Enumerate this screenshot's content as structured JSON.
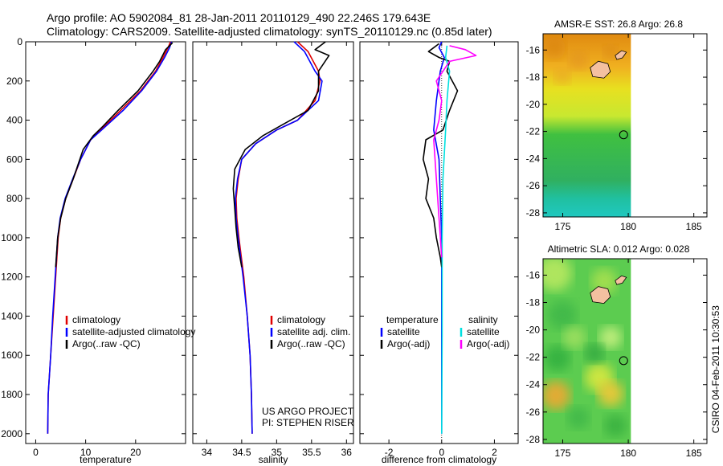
{
  "header": {
    "line1": "Argo profile: AO 5902084_81 28-Jan-2011 20110129_490 22.246S 179.643E",
    "line2": "Climatology: CARS2009. Satellite-adjusted climatology: synTS_20110129.nc (0.85d later)"
  },
  "credit": "CSIRO 04-Feb-2011 10:30:53",
  "colors": {
    "clim": "#e00000",
    "sat": "#0000ff",
    "argo": "#000000",
    "sat2": "#00e0e0",
    "argo2": "#ff00ff"
  },
  "chart_data": [
    {
      "type": "line",
      "xlabel": "temperature",
      "ylabel": "",
      "xlim": [
        -2,
        30
      ],
      "ylim": [
        2050,
        0
      ],
      "xticks": [
        "0",
        "10",
        "20"
      ],
      "xtick_values": [
        0,
        10,
        20
      ],
      "yticks": [
        "0",
        "200",
        "400",
        "600",
        "800",
        "1000",
        "1200",
        "1400",
        "1600",
        "1800",
        "2000"
      ],
      "ytick_values": [
        0,
        200,
        400,
        600,
        800,
        1000,
        1200,
        1400,
        1600,
        1800,
        2000
      ],
      "legend": [
        "climatology",
        "satellite-adjusted climatology",
        "Argo(..raw -QC)"
      ],
      "series": [
        {
          "name": "climatology",
          "color": "clim",
          "points": [
            [
              27,
              0
            ],
            [
              26.5,
              30
            ],
            [
              25.5,
              80
            ],
            [
              24,
              150
            ],
            [
              21,
              250
            ],
            [
              17,
              350
            ],
            [
              13,
              450
            ],
            [
              11,
              500
            ],
            [
              9,
              600
            ],
            [
              7.5,
              700
            ],
            [
              6,
              800
            ],
            [
              5,
              900
            ],
            [
              4.5,
              1000
            ],
            [
              4,
              1200
            ],
            [
              3.5,
              1400
            ],
            [
              3,
              1600
            ],
            [
              2.5,
              1800
            ],
            [
              2.4,
              2000
            ]
          ]
        },
        {
          "name": "satellite",
          "color": "sat",
          "points": [
            [
              27.2,
              0
            ],
            [
              26.8,
              30
            ],
            [
              25.8,
              80
            ],
            [
              24.2,
              150
            ],
            [
              21.2,
              250
            ],
            [
              17.5,
              350
            ],
            [
              13.2,
              450
            ],
            [
              11,
              500
            ],
            [
              9,
              600
            ],
            [
              7.4,
              700
            ],
            [
              5.9,
              800
            ],
            [
              4.9,
              900
            ],
            [
              4.4,
              1000
            ],
            [
              3.9,
              1200
            ],
            [
              3.4,
              1400
            ],
            [
              3,
              1600
            ],
            [
              2.5,
              1800
            ],
            [
              2.4,
              2000
            ]
          ]
        },
        {
          "name": "argo",
          "color": "argo",
          "points": [
            [
              27.4,
              5
            ],
            [
              26,
              40
            ],
            [
              24.8,
              100
            ],
            [
              23.5,
              150
            ],
            [
              20.5,
              250
            ],
            [
              16.5,
              350
            ],
            [
              13.5,
              430
            ],
            [
              11.5,
              480
            ],
            [
              9.5,
              550
            ],
            [
              7.5,
              700
            ],
            [
              6,
              800
            ],
            [
              5,
              900
            ],
            [
              4.4,
              1000
            ],
            [
              4,
              1150
            ]
          ]
        }
      ]
    },
    {
      "type": "line",
      "xlabel": "salinity",
      "ylabel": "",
      "xlim": [
        33.8,
        36.1
      ],
      "ylim": [
        2050,
        0
      ],
      "xticks": [
        "34",
        "34.5",
        "35",
        "35.5",
        "36"
      ],
      "xtick_values": [
        34,
        34.5,
        35,
        35.5,
        36
      ],
      "legend": [
        "climatology",
        "satellite adj. clim.",
        "Argo(..raw -QC)"
      ],
      "annotations": [
        "US ARGO PROJECT",
        "PI: STEPHEN RISER"
      ],
      "series": [
        {
          "name": "climatology",
          "color": "clim",
          "points": [
            [
              35.3,
              0
            ],
            [
              35.45,
              50
            ],
            [
              35.6,
              150
            ],
            [
              35.62,
              200
            ],
            [
              35.55,
              300
            ],
            [
              35.3,
              400
            ],
            [
              35,
              450
            ],
            [
              34.7,
              520
            ],
            [
              34.5,
              600
            ],
            [
              34.45,
              700
            ],
            [
              34.42,
              800
            ],
            [
              34.43,
              900
            ],
            [
              34.46,
              1000
            ],
            [
              34.53,
              1200
            ],
            [
              34.58,
              1400
            ],
            [
              34.62,
              1600
            ],
            [
              34.64,
              1800
            ],
            [
              34.65,
              2000
            ]
          ]
        },
        {
          "name": "satellite",
          "color": "sat",
          "points": [
            [
              35.25,
              0
            ],
            [
              35.4,
              50
            ],
            [
              35.55,
              150
            ],
            [
              35.65,
              200
            ],
            [
              35.6,
              300
            ],
            [
              35.3,
              400
            ],
            [
              35,
              450
            ],
            [
              34.7,
              520
            ],
            [
              34.5,
              600
            ],
            [
              34.44,
              700
            ],
            [
              34.41,
              800
            ],
            [
              34.42,
              900
            ],
            [
              34.45,
              1000
            ],
            [
              34.52,
              1200
            ],
            [
              34.58,
              1400
            ],
            [
              34.62,
              1600
            ],
            [
              34.64,
              1800
            ],
            [
              34.65,
              2000
            ]
          ]
        },
        {
          "name": "argo",
          "color": "argo",
          "points": [
            [
              35.7,
              0
            ],
            [
              35.55,
              40
            ],
            [
              35.75,
              70
            ],
            [
              35.6,
              150
            ],
            [
              35.6,
              250
            ],
            [
              35.45,
              350
            ],
            [
              35.1,
              420
            ],
            [
              34.8,
              480
            ],
            [
              34.55,
              550
            ],
            [
              34.4,
              650
            ],
            [
              34.38,
              750
            ],
            [
              34.4,
              850
            ],
            [
              34.42,
              950
            ],
            [
              34.45,
              1050
            ],
            [
              34.5,
              1150
            ]
          ]
        }
      ]
    },
    {
      "type": "line",
      "xlabel": "difference from climatology",
      "ylabel": "",
      "xlim": [
        -3.1,
        2.9
      ],
      "ylim": [
        2050,
        0
      ],
      "xticks": [
        "-2",
        "0",
        "2"
      ],
      "xtick_values": [
        -2,
        0,
        2
      ],
      "legend_left_title": "temperature",
      "legend_right_title": "salinity",
      "legend_left": [
        "satellite",
        "Argo(-adj)"
      ],
      "legend_right": [
        "satellite",
        "Argo(-adj)"
      ],
      "series": [
        {
          "name": "temperature satellite",
          "color": "sat",
          "points": [
            [
              0,
              0
            ],
            [
              -0.1,
              30
            ],
            [
              0.1,
              80
            ],
            [
              -0.05,
              150
            ],
            [
              -0.2,
              300
            ],
            [
              -0.3,
              450
            ],
            [
              -0.1,
              600
            ],
            [
              -0.05,
              800
            ],
            [
              0,
              1000
            ],
            [
              0,
              1400
            ],
            [
              0,
              2000
            ]
          ]
        },
        {
          "name": "temperature Argo(-adj)",
          "color": "argo",
          "points": [
            [
              -0.1,
              10
            ],
            [
              -0.5,
              50
            ],
            [
              -0.1,
              80
            ],
            [
              0.3,
              100
            ],
            [
              0.2,
              150
            ],
            [
              0.6,
              250
            ],
            [
              0.3,
              350
            ],
            [
              0.05,
              450
            ],
            [
              -0.6,
              500
            ],
            [
              -0.7,
              600
            ],
            [
              -0.5,
              700
            ],
            [
              -0.6,
              800
            ],
            [
              -0.3,
              900
            ],
            [
              -0.2,
              1000
            ],
            [
              -0.05,
              1100
            ],
            [
              0,
              1150
            ]
          ]
        },
        {
          "name": "salinity satellite",
          "color": "sat2",
          "points": [
            [
              0.2,
              20
            ],
            [
              0.15,
              80
            ],
            [
              0.3,
              150
            ],
            [
              0.2,
              300
            ],
            [
              0.15,
              450
            ],
            [
              0.05,
              700
            ],
            [
              0.02,
              1000
            ],
            [
              0.02,
              1500
            ],
            [
              0,
              2000
            ]
          ]
        },
        {
          "name": "salinity Argo(-adj)",
          "color": "argo2",
          "points": [
            [
              0.3,
              20
            ],
            [
              0.9,
              40
            ],
            [
              1.3,
              70
            ],
            [
              0.3,
              100
            ],
            [
              -0.2,
              200
            ],
            [
              0,
              300
            ],
            [
              -0.1,
              400
            ],
            [
              -0.3,
              500
            ],
            [
              -0.2,
              700
            ],
            [
              -0.1,
              900
            ],
            [
              0,
              1100
            ]
          ]
        }
      ]
    },
    {
      "type": "heatmap",
      "title": "AMSR-E SST: 26.8 Argo: 26.8",
      "xticks": [
        "175",
        "180",
        "185"
      ],
      "xtick_values": [
        175,
        180,
        185
      ],
      "yticks": [
        "-16",
        "-18",
        "-20",
        "-22",
        "-24",
        "-26",
        "-28"
      ],
      "ytick_values": [
        -16,
        -18,
        -20,
        -22,
        -24,
        -26,
        -28
      ],
      "xlim": [
        173.5,
        186
      ],
      "ylim": [
        -28.3,
        -14.8
      ],
      "profile_location": [
        179.643,
        -22.246
      ]
    },
    {
      "type": "heatmap",
      "title": "Altimetric SLA: 0.012 Argo: 0.028",
      "xticks": [
        "175",
        "180",
        "185"
      ],
      "xtick_values": [
        175,
        180,
        185
      ],
      "yticks": [
        "-16",
        "-18",
        "-20",
        "-22",
        "-24",
        "-26",
        "-28"
      ],
      "ytick_values": [
        -16,
        -18,
        -20,
        -22,
        -24,
        -26,
        -28
      ],
      "xlim": [
        173.5,
        186
      ],
      "ylim": [
        -28.3,
        -14.8
      ],
      "profile_location": [
        179.643,
        -22.246
      ]
    }
  ]
}
